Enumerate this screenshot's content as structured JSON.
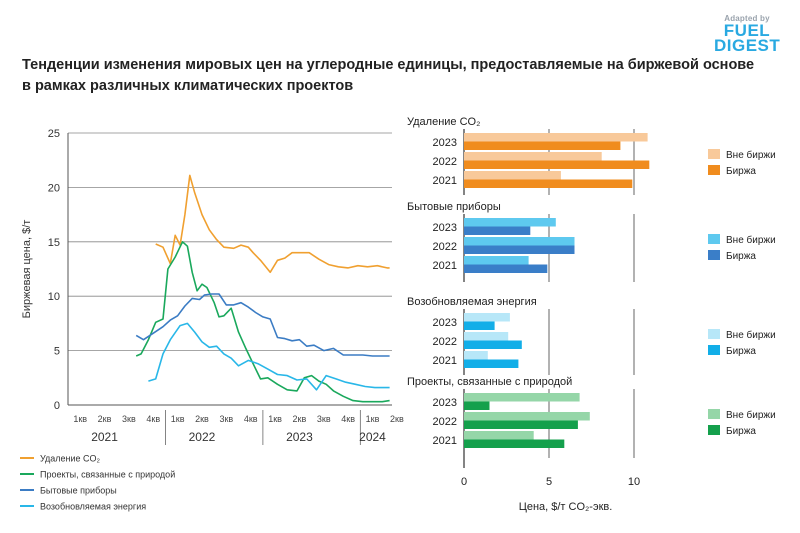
{
  "logo": {
    "line1": "Adapted by",
    "line2": "FUEL",
    "line3": "DIGEST"
  },
  "title": "Тенденции изменения мировых цен на углеродные единицы, предоставляемые на биржевой основе в рамках различных климатических проектов",
  "chart_data": [
    {
      "type": "line",
      "ylabel": "Биржевая цена, $/т",
      "xlabel": "",
      "ylim": [
        0,
        25
      ],
      "yticks": [
        0,
        5,
        10,
        15,
        20,
        25
      ],
      "xlim": [
        0,
        13.3
      ],
      "categories": [
        "1кв",
        "2кв",
        "3кв",
        "4кв",
        "1кв",
        "2кв",
        "3кв",
        "4кв",
        "1кв",
        "2кв",
        "3кв",
        "4кв",
        "1кв",
        "2кв"
      ],
      "years": [
        {
          "label": "2021",
          "center": 1.5
        },
        {
          "label": "2022",
          "center": 5.5
        },
        {
          "label": "2023",
          "center": 9.5
        },
        {
          "label": "2024",
          "center": 12.5
        }
      ],
      "grid": "horizontal",
      "series": [
        {
          "name": "Удаление CO₂",
          "color": "#f0a030",
          "x": [
            3.6,
            3.9,
            4.2,
            4.4,
            4.6,
            4.8,
            5.0,
            5.2,
            5.5,
            5.8,
            6.1,
            6.4,
            6.8,
            7.1,
            7.4,
            7.6,
            7.9,
            8.3,
            8.6,
            8.9,
            9.2,
            9.5,
            9.9,
            10.3,
            10.7,
            11.1,
            11.5,
            11.9,
            12.3,
            12.7,
            13.1,
            13.2
          ],
          "y": [
            14.8,
            14.5,
            13.0,
            15.6,
            14.7,
            17.5,
            21.1,
            19.5,
            17.5,
            16.1,
            15.2,
            14.5,
            14.4,
            14.7,
            14.5,
            14.0,
            13.3,
            12.2,
            13.3,
            13.5,
            14.0,
            14.0,
            14.0,
            13.4,
            12.9,
            12.7,
            12.6,
            12.8,
            12.7,
            12.8,
            12.6,
            12.6
          ]
        },
        {
          "name": "Проекты, связанные с природой",
          "color": "#1aa85c",
          "x": [
            2.8,
            3.0,
            3.3,
            3.6,
            3.9,
            4.1,
            4.4,
            4.7,
            4.9,
            5.1,
            5.3,
            5.5,
            5.7,
            6.0,
            6.2,
            6.4,
            6.7,
            7.0,
            7.3,
            7.6,
            7.9,
            8.2,
            8.6,
            9.0,
            9.4,
            9.7,
            10.0,
            10.3,
            10.6,
            10.9,
            11.3,
            11.7,
            12.1,
            12.5,
            12.9,
            13.2
          ],
          "y": [
            4.5,
            4.7,
            6.0,
            7.6,
            7.9,
            12.5,
            13.6,
            15.0,
            14.6,
            12.2,
            10.5,
            11.1,
            10.8,
            9.4,
            8.1,
            8.2,
            8.9,
            6.7,
            5.2,
            3.8,
            2.4,
            2.5,
            1.9,
            1.4,
            1.3,
            2.5,
            2.7,
            2.2,
            1.9,
            1.3,
            0.8,
            0.4,
            0.3,
            0.3,
            0.3,
            0.4
          ]
        },
        {
          "name": "Бытовые приборы",
          "color": "#3b7cc4",
          "x": [
            2.8,
            3.1,
            3.5,
            3.9,
            4.2,
            4.5,
            4.8,
            5.1,
            5.4,
            5.6,
            5.9,
            6.2,
            6.5,
            6.8,
            7.1,
            7.4,
            7.7,
            8.0,
            8.3,
            8.6,
            8.9,
            9.2,
            9.5,
            9.8,
            10.1,
            10.5,
            10.9,
            11.3,
            11.7,
            12.1,
            12.5,
            12.9,
            13.2
          ],
          "y": [
            6.4,
            6.0,
            6.6,
            7.2,
            7.8,
            8.2,
            9.1,
            9.8,
            9.7,
            10.1,
            10.2,
            10.2,
            9.2,
            9.2,
            9.4,
            9.0,
            8.5,
            8.1,
            7.9,
            6.2,
            6.1,
            5.9,
            6.0,
            5.4,
            5.5,
            5.0,
            5.2,
            4.6,
            4.6,
            4.6,
            4.5,
            4.5,
            4.5
          ]
        },
        {
          "name": "Возобновляемая энергия",
          "color": "#29b7e8",
          "x": [
            3.3,
            3.6,
            3.9,
            4.2,
            4.6,
            4.9,
            5.2,
            5.5,
            5.8,
            6.1,
            6.4,
            6.7,
            7.0,
            7.4,
            7.8,
            8.2,
            8.6,
            9.0,
            9.4,
            9.8,
            10.2,
            10.6,
            11.0,
            11.4,
            11.8,
            12.2,
            12.6,
            13.0,
            13.2
          ],
          "y": [
            2.2,
            2.4,
            4.7,
            6.0,
            7.3,
            7.5,
            6.7,
            5.8,
            5.3,
            5.4,
            4.7,
            4.3,
            3.6,
            4.1,
            3.8,
            3.3,
            2.8,
            2.7,
            2.3,
            2.4,
            1.4,
            2.7,
            2.4,
            2.1,
            1.9,
            1.7,
            1.6,
            1.6,
            1.6
          ]
        }
      ]
    },
    {
      "type": "bar",
      "orientation": "horizontal",
      "xlabel": "Цена, $/т CO₂-экв.",
      "xlim": [
        0,
        11
      ],
      "xticks": [
        0,
        5,
        10
      ],
      "categories": [
        "2023",
        "2022",
        "2021"
      ],
      "legend_placement": "right",
      "groups": [
        {
          "title": "Удаление CO₂",
          "colors": {
            "otc": "#f8c99a",
            "exchange": "#f08c1e"
          },
          "series": [
            {
              "name": "Вне биржи",
              "values": [
                10.8,
                8.1,
                5.7
              ]
            },
            {
              "name": "Биржа",
              "values": [
                9.2,
                10.9,
                9.9
              ]
            }
          ]
        },
        {
          "title": "Бытовые приборы",
          "colors": {
            "otc": "#5ec9ef",
            "exchange": "#3a7ec8"
          },
          "series": [
            {
              "name": "Вне биржи",
              "values": [
                5.4,
                6.5,
                3.8
              ]
            },
            {
              "name": "Биржа",
              "values": [
                3.9,
                6.5,
                4.9
              ]
            }
          ]
        },
        {
          "title": "Возобновляемая энергия",
          "colors": {
            "otc": "#b7e7f8",
            "exchange": "#12aee8"
          },
          "series": [
            {
              "name": "Вне биржи",
              "values": [
                2.7,
                2.6,
                1.4
              ]
            },
            {
              "name": "Биржа",
              "values": [
                1.8,
                3.4,
                3.2
              ]
            }
          ]
        },
        {
          "title": "Проекты, связанные с природой",
          "colors": {
            "otc": "#95d6a8",
            "exchange": "#14a04c"
          },
          "series": [
            {
              "name": "Вне биржи",
              "values": [
                6.8,
                7.4,
                4.1
              ]
            },
            {
              "name": "Биржа",
              "values": [
                1.5,
                6.7,
                5.9
              ]
            }
          ]
        }
      ]
    }
  ]
}
